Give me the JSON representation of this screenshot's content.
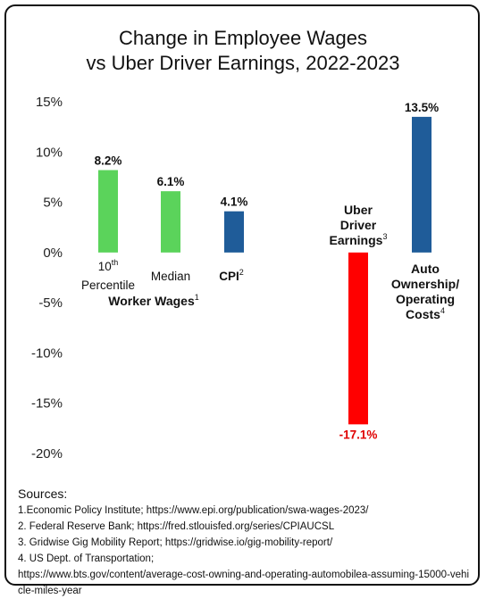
{
  "chart_data": {
    "type": "bar",
    "title_line1": "Change in Employee Wages",
    "title_line2": "vs Uber Driver Earnings, 2022-2023",
    "ylim": [
      -20,
      15
    ],
    "yticks": [
      "15%",
      "10%",
      "5%",
      "0%",
      "-5%",
      "-10%",
      "-15%",
      "-20%"
    ],
    "ytick_values": [
      15,
      10,
      5,
      0,
      -5,
      -10,
      -15,
      -20
    ],
    "grid": false,
    "bars": [
      {
        "category_line1": "10",
        "category_sup": "th",
        "category_line2": "Percentile",
        "value": 8.2,
        "value_label": "8.2%",
        "color": "#5BD35B"
      },
      {
        "category_line1": "Median",
        "value": 6.1,
        "value_label": "6.1%",
        "color": "#5BD35B"
      },
      {
        "category_line1": "CPI",
        "category_sup": "2",
        "value": 4.1,
        "value_label": "4.1%",
        "color": "#1F5C99"
      },
      {
        "category_line1": "Uber",
        "category_line2": "Driver",
        "category_line3": "Earnings",
        "category_sup": "3",
        "value": -17.1,
        "value_label": "-17.1%",
        "color": "#FF0000",
        "label_color": "#E00000"
      },
      {
        "category_line1": "Auto",
        "category_line2": "Ownership/",
        "category_line3": "Operating",
        "category_line4": "Costs",
        "category_sup": "4",
        "value": 13.5,
        "value_label": "13.5%",
        "color": "#1F5C99"
      }
    ],
    "group_label": "Worker Wages",
    "group_label_sup": "1"
  },
  "sources": {
    "heading": "Sources:",
    "lines": [
      "1.Economic Policy Institute; https://www.epi.org/publication/swa-wages-2023/",
      "2. Federal Reserve Bank; https://fred.stlouisfed.org/series/CPIAUCSL",
      "3. Gridwise Gig Mobility Report; https://gridwise.io/gig-mobility-report/",
      "4. US Dept. of Transportation;",
      "https://www.bts.gov/content/average-cost-owning-and-operating-automobilea-assuming-15000-vehicle-miles-year"
    ]
  }
}
